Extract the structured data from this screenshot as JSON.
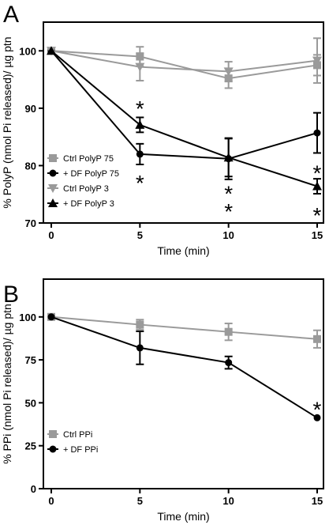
{
  "chart_data": [
    {
      "panel": "A",
      "type": "line",
      "xlabel": "Time (min)",
      "ylabel": "% PolyP (nmol Pi released)/ µg ptn",
      "x": [
        0,
        5,
        10,
        15
      ],
      "xlim": [
        0,
        15
      ],
      "ylim": [
        70,
        105
      ],
      "xticks": [
        0,
        5,
        10,
        15
      ],
      "yticks": [
        70,
        80,
        90,
        100
      ],
      "grid": false,
      "legend_position": "lower-left",
      "series": [
        {
          "name": "Ctrl PolyP 75",
          "marker": "square",
          "color": "#9a9a9a",
          "values": [
            100,
            99,
            95.2,
            97.5
          ],
          "err": [
            0,
            1.7,
            1.7,
            1.8
          ]
        },
        {
          "name": "+ DF PolyP 75",
          "marker": "circle",
          "color": "#000000",
          "values": [
            100,
            82,
            81.2,
            85.7
          ],
          "err": [
            0,
            1.8,
            3.6,
            3.5
          ]
        },
        {
          "name": "Ctrl PolyP 3",
          "marker": "triangle-down",
          "color": "#9a9a9a",
          "values": [
            100,
            97.2,
            96.4,
            98.3
          ],
          "err": [
            0,
            2.4,
            1.7,
            3.9
          ]
        },
        {
          "name": "+ DF PolyP 3",
          "marker": "triangle-up",
          "color": "#000000",
          "values": [
            100,
            87.1,
            81.4,
            76.4
          ],
          "err": [
            0,
            1.3,
            3.3,
            1.3
          ]
        }
      ],
      "annotations": [
        {
          "text": "*",
          "x": 5,
          "y": 90.5
        },
        {
          "text": "*",
          "x": 5,
          "y": 77.6
        },
        {
          "text": "*",
          "x": 10,
          "y": 75.7
        },
        {
          "text": "*",
          "x": 10,
          "y": 72.6
        },
        {
          "text": "*",
          "x": 15,
          "y": 79.3
        },
        {
          "text": "*",
          "x": 15,
          "y": 71.9
        }
      ]
    },
    {
      "panel": "B",
      "type": "line",
      "xlabel": "Time (min)",
      "ylabel": "% PPi (nmol Pi released)/ µg ptn",
      "x": [
        0,
        5,
        10,
        15
      ],
      "xlim": [
        0,
        15
      ],
      "ylim": [
        0,
        122
      ],
      "xticks": [
        0,
        5,
        10,
        15
      ],
      "yticks": [
        0,
        25,
        50,
        75,
        100
      ],
      "grid": false,
      "legend_position": "lower-left",
      "series": [
        {
          "name": "Ctrl PPi",
          "marker": "square",
          "color": "#9a9a9a",
          "values": [
            100,
            95.5,
            91.3,
            87.1
          ],
          "err": [
            0,
            2.9,
            4.9,
            5.1
          ]
        },
        {
          "name": "+ DF PPi",
          "marker": "circle",
          "color": "#000000",
          "values": [
            100,
            82,
            73.4,
            41.3
          ],
          "err": [
            0,
            9.6,
            3.6,
            0
          ]
        }
      ],
      "annotations": [
        {
          "text": "*",
          "x": 15,
          "y": 48
        }
      ]
    }
  ]
}
